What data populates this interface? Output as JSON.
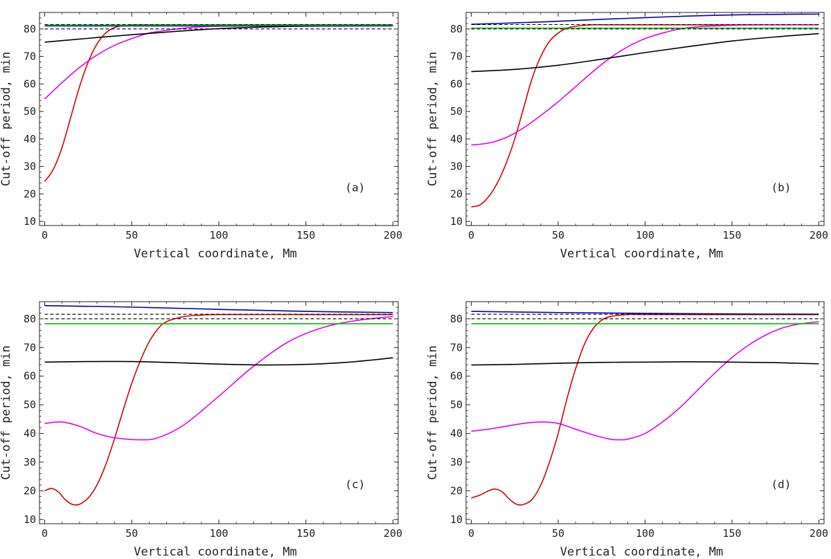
{
  "chart_data": [
    {
      "type": "line",
      "panel_label": "(a)",
      "xlabel": "Vertical coordinate, Mm",
      "ylabel": "Cut-off period, min",
      "xlim": [
        -3,
        203
      ],
      "ylim": [
        8.5,
        86
      ],
      "xticks": [
        0,
        50,
        100,
        150,
        200
      ],
      "yticks": [
        10,
        20,
        30,
        40,
        50,
        60,
        70,
        80
      ],
      "grid": false,
      "series": [
        {
          "color": "#d40000",
          "dash": false,
          "x": [
            0,
            5,
            10,
            15,
            20,
            25,
            30,
            35,
            40,
            45,
            50,
            60,
            80,
            100,
            150,
            200
          ],
          "y": [
            24.5,
            29,
            37,
            48,
            59,
            68,
            74.5,
            78.5,
            80.5,
            81.2,
            81.5,
            81.5,
            81.5,
            81.5,
            81.5,
            81.5
          ]
        },
        {
          "color": "#e600e6",
          "dash": false,
          "x": [
            0,
            10,
            20,
            30,
            40,
            50,
            60,
            70,
            80,
            90,
            100,
            120,
            150,
            200
          ],
          "y": [
            54.5,
            60.5,
            66,
            70.5,
            74,
            76.5,
            78.5,
            79.5,
            80.3,
            80.8,
            81,
            81.2,
            81.4,
            81.5
          ]
        },
        {
          "color": "#000000",
          "dash": false,
          "x": [
            0,
            25,
            50,
            75,
            100,
            125,
            150,
            175,
            200
          ],
          "y": [
            75.2,
            76.6,
            77.9,
            79.1,
            80.1,
            80.7,
            81,
            81.1,
            81.2
          ]
        },
        {
          "color": "#0000b4",
          "dash": false,
          "x": [
            0,
            50,
            100,
            150,
            200
          ],
          "y": [
            81.1,
            81.1,
            81.1,
            81.1,
            81.1
          ]
        },
        {
          "color": "#00c000",
          "dash": false,
          "x": [
            0,
            50,
            100,
            150,
            200
          ],
          "y": [
            81.4,
            81.4,
            81.4,
            81.4,
            81.4
          ]
        },
        {
          "color": "#000000",
          "dash": true,
          "x": [
            0,
            200
          ],
          "y": [
            81.6,
            81.6
          ]
        },
        {
          "color": "#000000",
          "dash": true,
          "x": [
            0,
            200
          ],
          "y": [
            80.0,
            80.0
          ]
        }
      ]
    },
    {
      "type": "line",
      "panel_label": "(b)",
      "xlabel": "Vertical coordinate, Mm",
      "ylabel": "Cut-off period, min",
      "xlim": [
        -3,
        203
      ],
      "ylim": [
        8.5,
        86
      ],
      "xticks": [
        0,
        50,
        100,
        150,
        200
      ],
      "yticks": [
        10,
        20,
        30,
        40,
        50,
        60,
        70,
        80
      ],
      "grid": false,
      "series": [
        {
          "color": "#d40000",
          "dash": false,
          "x": [
            0,
            5,
            10,
            15,
            20,
            25,
            30,
            35,
            40,
            45,
            50,
            55,
            60,
            70,
            80,
            100,
            150,
            200
          ],
          "y": [
            15.3,
            16,
            19,
            24,
            31,
            40,
            51,
            62,
            70,
            75.5,
            78.5,
            80.3,
            81,
            81.5,
            81.5,
            81.5,
            81.5,
            81.5
          ]
        },
        {
          "color": "#e600e6",
          "dash": false,
          "x": [
            0,
            10,
            20,
            30,
            40,
            50,
            60,
            70,
            80,
            90,
            100,
            110,
            120,
            130,
            150,
            170,
            200
          ],
          "y": [
            37.8,
            38.5,
            40.5,
            44,
            48.5,
            53.5,
            59,
            64.5,
            69.5,
            73.5,
            76.5,
            78.5,
            80,
            80.8,
            81.3,
            81.5,
            81.5
          ]
        },
        {
          "color": "#000000",
          "dash": false,
          "x": [
            0,
            25,
            50,
            75,
            100,
            125,
            150,
            175,
            200
          ],
          "y": [
            64.5,
            65.3,
            66.8,
            69,
            71.4,
            73.6,
            75.6,
            77.1,
            78.3
          ]
        },
        {
          "color": "#0000b4",
          "dash": false,
          "x": [
            0,
            25,
            50,
            75,
            100,
            125,
            150,
            175,
            200
          ],
          "y": [
            81.7,
            82.2,
            82.8,
            83.5,
            84.1,
            84.7,
            85.1,
            85.3,
            85.4
          ]
        },
        {
          "color": "#00c000",
          "dash": false,
          "x": [
            0,
            50,
            100,
            150,
            200
          ],
          "y": [
            80.3,
            80.3,
            80.3,
            80.3,
            80.3
          ]
        },
        {
          "color": "#000000",
          "dash": true,
          "x": [
            0,
            200
          ],
          "y": [
            81.6,
            81.6
          ]
        },
        {
          "color": "#000000",
          "dash": true,
          "x": [
            0,
            200
          ],
          "y": [
            80.0,
            80.0
          ]
        }
      ]
    },
    {
      "type": "line",
      "panel_label": "(c)",
      "xlabel": "Vertical coordinate, Mm",
      "ylabel": "Cut-off period, min",
      "xlim": [
        -3,
        203
      ],
      "ylim": [
        8.5,
        86
      ],
      "xticks": [
        0,
        50,
        100,
        150,
        200
      ],
      "yticks": [
        10,
        20,
        30,
        40,
        50,
        60,
        70,
        80
      ],
      "grid": false,
      "series": [
        {
          "color": "#d40000",
          "dash": false,
          "x": [
            0,
            4,
            8,
            12,
            16,
            20,
            25,
            30,
            35,
            40,
            45,
            50,
            55,
            60,
            65,
            70,
            80,
            90,
            100,
            150,
            200
          ],
          "y": [
            20,
            20.8,
            19.5,
            16.8,
            15.2,
            15.3,
            17.5,
            22,
            29,
            38,
            48,
            57.5,
            65.5,
            72,
            76.5,
            79,
            80.8,
            81.3,
            81.5,
            81.5,
            81.5
          ]
        },
        {
          "color": "#e600e6",
          "dash": false,
          "x": [
            0,
            10,
            20,
            30,
            40,
            55,
            65,
            80,
            100,
            120,
            140,
            160,
            180,
            200
          ],
          "y": [
            43.5,
            44,
            42.5,
            40,
            38.5,
            37.8,
            38.5,
            43,
            53,
            63.5,
            72,
            77,
            79.5,
            80.8
          ]
        },
        {
          "color": "#000000",
          "dash": false,
          "x": [
            0,
            25,
            50,
            75,
            100,
            125,
            150,
            175,
            200
          ],
          "y": [
            64.9,
            65.1,
            65.1,
            64.7,
            64.2,
            63.9,
            64.1,
            64.9,
            66.4
          ]
        },
        {
          "color": "#0000b4",
          "dash": false,
          "x": [
            0,
            50,
            100,
            150,
            200
          ],
          "y": [
            84.6,
            84.1,
            83.3,
            82.6,
            82.2
          ]
        },
        {
          "color": "#00c000",
          "dash": false,
          "x": [
            0,
            50,
            100,
            150,
            200
          ],
          "y": [
            78.3,
            78.3,
            78.3,
            78.3,
            78.3
          ]
        },
        {
          "color": "#000000",
          "dash": true,
          "x": [
            0,
            200
          ],
          "y": [
            81.6,
            81.6
          ]
        },
        {
          "color": "#000000",
          "dash": true,
          "x": [
            0,
            200
          ],
          "y": [
            80.0,
            80.0
          ]
        }
      ]
    },
    {
      "type": "line",
      "panel_label": "(d)",
      "xlabel": "Vertical coordinate, Mm",
      "ylabel": "Cut-off period, min",
      "xlim": [
        -3,
        203
      ],
      "ylim": [
        8.5,
        86
      ],
      "xticks": [
        0,
        50,
        100,
        150,
        200
      ],
      "yticks": [
        10,
        20,
        30,
        40,
        50,
        60,
        70,
        80
      ],
      "grid": false,
      "series": [
        {
          "color": "#d40000",
          "dash": false,
          "x": [
            0,
            5,
            10,
            14,
            18,
            22,
            26,
            30,
            35,
            40,
            45,
            50,
            55,
            60,
            65,
            70,
            75,
            80,
            90,
            100,
            150,
            200
          ],
          "y": [
            17.5,
            18.5,
            20,
            20.6,
            19.5,
            17,
            15.3,
            15.2,
            17,
            22,
            30,
            40,
            52,
            62.5,
            71,
            76.5,
            79.5,
            80.8,
            81.5,
            81.5,
            81.5,
            81.5
          ]
        },
        {
          "color": "#e600e6",
          "dash": false,
          "x": [
            0,
            10,
            20,
            30,
            40,
            50,
            60,
            70,
            80,
            85,
            90,
            100,
            110,
            120,
            130,
            140,
            150,
            160,
            170,
            180,
            190,
            200
          ],
          "y": [
            40.8,
            41.5,
            42.5,
            43.5,
            44,
            43.5,
            41.5,
            39.5,
            38,
            37.8,
            38,
            40,
            44,
            49,
            55,
            61,
            66.5,
            71,
            74.5,
            77,
            78.3,
            79
          ]
        },
        {
          "color": "#000000",
          "dash": false,
          "x": [
            0,
            25,
            50,
            75,
            100,
            125,
            150,
            175,
            200
          ],
          "y": [
            63.9,
            64.1,
            64.5,
            64.8,
            64.9,
            65,
            64.9,
            64.7,
            64.3
          ]
        },
        {
          "color": "#0000b4",
          "dash": false,
          "x": [
            0,
            50,
            100,
            150,
            200
          ],
          "y": [
            82.6,
            82.2,
            81.9,
            81.7,
            81.6
          ]
        },
        {
          "color": "#00c000",
          "dash": false,
          "x": [
            0,
            50,
            100,
            150,
            200
          ],
          "y": [
            78.3,
            78.3,
            78.3,
            78.3,
            78.3
          ]
        },
        {
          "color": "#000000",
          "dash": true,
          "x": [
            0,
            200
          ],
          "y": [
            81.6,
            81.6
          ]
        },
        {
          "color": "#000000",
          "dash": true,
          "x": [
            0,
            200
          ],
          "y": [
            80.0,
            80.0
          ]
        }
      ]
    }
  ]
}
